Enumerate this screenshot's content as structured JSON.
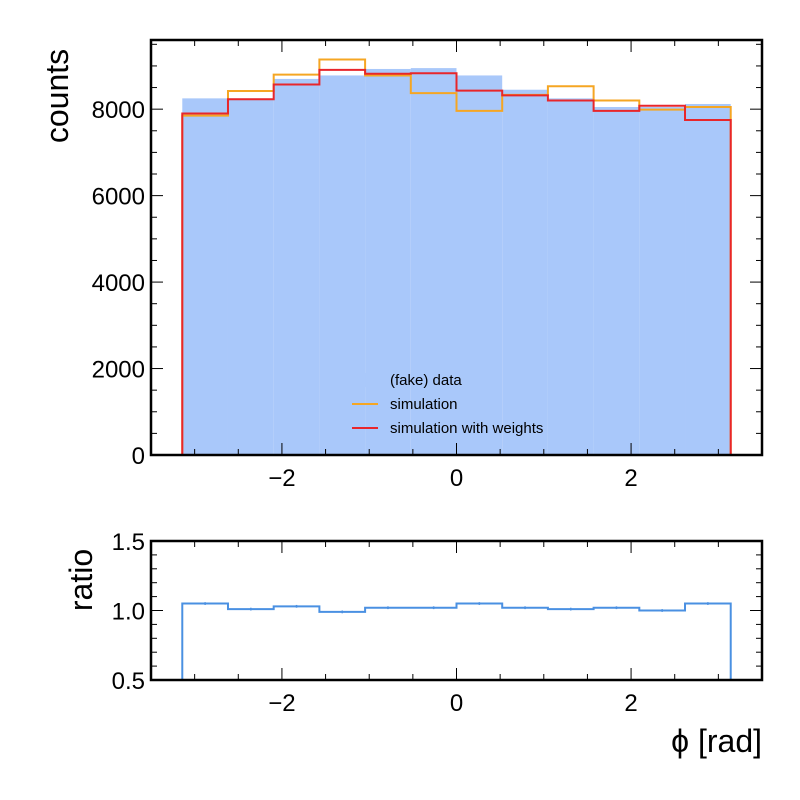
{
  "chart_data": [
    {
      "type": "histogram",
      "ylabel": "counts",
      "xlim": [
        -3.5,
        3.5
      ],
      "ylim": [
        0,
        9600
      ],
      "x_major_ticks": [
        -2,
        0,
        2
      ],
      "y_major_ticks": [
        0,
        2000,
        4000,
        6000,
        8000
      ],
      "bin_edges": [
        -3.1416,
        -2.618,
        -2.0944,
        -1.5708,
        -1.0472,
        -0.5236,
        0,
        0.5236,
        1.0472,
        1.5708,
        2.0944,
        2.618,
        3.1416
      ],
      "legend_position": "lower-center",
      "series": [
        {
          "name": "(fake) data",
          "style": "filled",
          "color": "#a9c8fa",
          "values": [
            8250,
            8250,
            8700,
            8780,
            8930,
            8950,
            8780,
            8450,
            8250,
            8050,
            8050,
            8120
          ]
        },
        {
          "name": "simulation",
          "style": "step",
          "color": "#f5a623",
          "values": [
            7850,
            8420,
            8800,
            9150,
            8780,
            8370,
            7960,
            8330,
            8530,
            8200,
            7990,
            8050
          ]
        },
        {
          "name": "simulation with weights",
          "style": "step",
          "color": "#e8262b",
          "values": [
            7900,
            8230,
            8570,
            8910,
            8820,
            8830,
            8430,
            8320,
            8200,
            7960,
            8080,
            7750
          ]
        }
      ]
    },
    {
      "type": "ratio",
      "ylabel": "ratio",
      "xlabel": "ϕ [rad]",
      "xlim": [
        -3.5,
        3.5
      ],
      "ylim": [
        0.5,
        1.5
      ],
      "x_major_ticks": [
        -2,
        0,
        2
      ],
      "y_major_ticks": [
        0.5,
        1.0,
        1.5
      ],
      "y_tick_labels": [
        "0.5",
        "1.0",
        "1.5"
      ],
      "bin_edges": [
        -3.1416,
        -2.618,
        -2.0944,
        -1.5708,
        -1.0472,
        -0.5236,
        0,
        0.5236,
        1.0472,
        1.5708,
        2.0944,
        2.618,
        3.1416
      ],
      "series": [
        {
          "name": "ratio",
          "style": "step",
          "color": "#4a90e2",
          "values": [
            1.05,
            1.01,
            1.03,
            0.99,
            1.02,
            1.02,
            1.05,
            1.02,
            1.01,
            1.02,
            1.0,
            1.05
          ],
          "errors": [
            0.01,
            0.01,
            0.01,
            0.01,
            0.01,
            0.01,
            0.01,
            0.01,
            0.01,
            0.01,
            0.01,
            0.01
          ]
        }
      ]
    }
  ]
}
